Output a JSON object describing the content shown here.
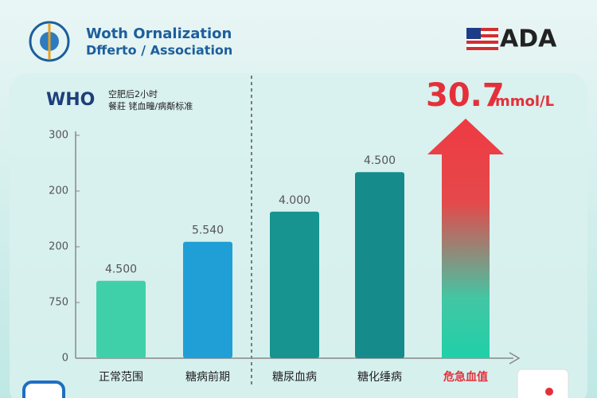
{
  "header": {
    "org_line1": "Woth   Ornalization",
    "org_line2": "Dfferto / Association",
    "right_logo": "ADA"
  },
  "chart_data": {
    "type": "bar",
    "title": "WHO",
    "subtitle": [
      "空肥后2小时",
      "餐莊 铑血疃/病斴标准"
    ],
    "callout": {
      "text": "30.7",
      "unit": "mmol/L"
    },
    "categories": [
      "正常范围",
      "糖病前期",
      "糖尿血病",
      "糖化缍病",
      "危急血值"
    ],
    "values": [
      1.39,
      2.09,
      2.63,
      3.34,
      4.3
    ],
    "bar_labels": [
      "4.500",
      "5.540",
      "4.000",
      "4.500",
      null
    ],
    "colors": [
      "#3fd0aa",
      "#1f9fd6",
      "#17948f",
      "#158b8b",
      "#e8393f"
    ],
    "ylim": [
      0,
      4.3
    ],
    "yticks": [
      {
        "value": 0,
        "label": "0"
      },
      {
        "value": 1,
        "label": "750"
      },
      {
        "value": 2,
        "label": "200"
      },
      {
        "value": 3,
        "label": "200"
      },
      {
        "value": 4,
        "label": "300"
      }
    ]
  }
}
